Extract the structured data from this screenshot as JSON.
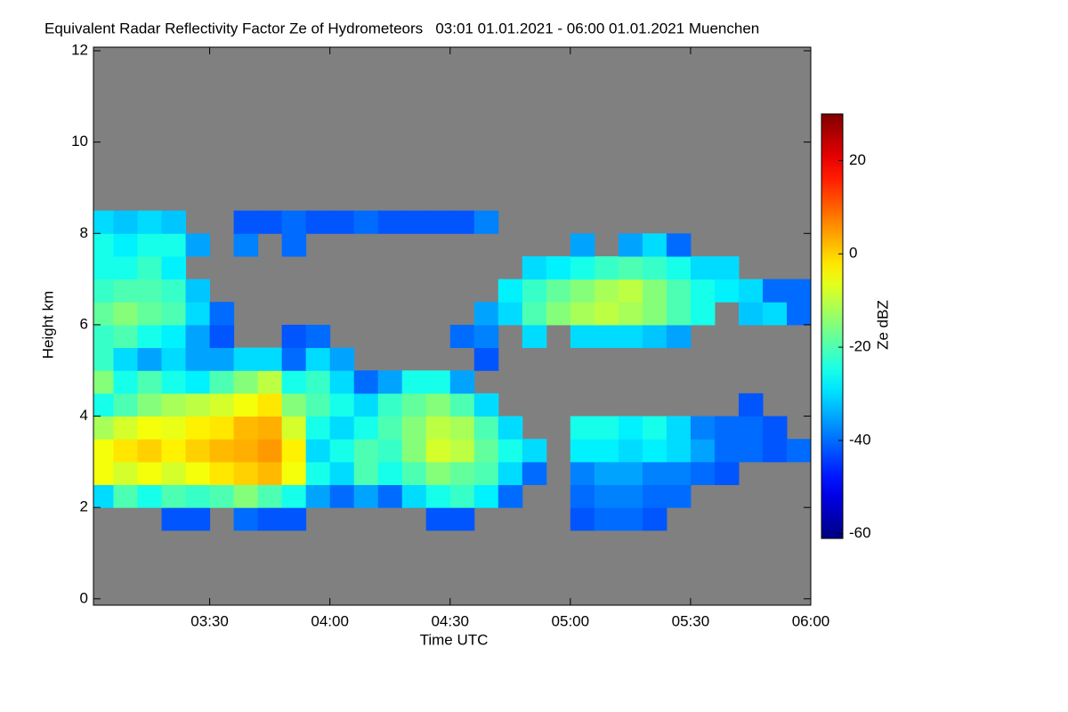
{
  "chart_data": {
    "type": "heatmap",
    "title": "Equivalent Radar Reflectivity Factor Ze of Hydrometeors   03:01 01.01.2021 - 06:00 01.01.2021 Muenchen",
    "xlabel": "Time UTC",
    "ylabel": "Height km",
    "colorbar_label": "Ze dBZ",
    "colormap": "jet",
    "background": "#808080",
    "xlim": [
      181,
      360
    ],
    "ylim": [
      -0.14,
      12
    ],
    "clim": [
      -61,
      30
    ],
    "xticks": [
      {
        "value": 210,
        "label": "03:30"
      },
      {
        "value": 240,
        "label": "04:00"
      },
      {
        "value": 270,
        "label": "04:30"
      },
      {
        "value": 300,
        "label": "05:00"
      },
      {
        "value": 330,
        "label": "05:30"
      },
      {
        "value": 360,
        "label": "06:00"
      }
    ],
    "yticks": [
      0,
      2,
      4,
      6,
      8,
      10,
      12
    ],
    "cticks": [
      -60,
      -40,
      -20,
      0,
      20
    ],
    "x": [
      180,
      186,
      192,
      198,
      204,
      210,
      216,
      222,
      228,
      234,
      240,
      246,
      252,
      258,
      264,
      270,
      276,
      282,
      288,
      294,
      300,
      306,
      312,
      318,
      324,
      330,
      336,
      342,
      348,
      354
    ],
    "y": [
      0,
      0.5,
      1,
      1.5,
      2,
      2.5,
      3,
      3.5,
      4,
      4.5,
      5,
      5.5,
      6,
      6.5,
      7,
      7.5,
      8,
      8.5
    ],
    "z": [
      [
        null,
        null,
        null,
        null,
        null,
        null,
        null,
        null,
        null,
        null,
        null,
        null,
        null,
        null,
        null,
        null,
        null,
        null,
        null,
        null,
        null,
        null,
        null,
        null,
        null,
        null,
        null,
        null,
        null,
        null
      ],
      [
        null,
        null,
        null,
        null,
        null,
        null,
        null,
        null,
        null,
        null,
        null,
        null,
        null,
        null,
        null,
        null,
        null,
        null,
        null,
        null,
        null,
        null,
        null,
        null,
        null,
        null,
        null,
        null,
        null,
        null
      ],
      [
        null,
        null,
        null,
        null,
        null,
        null,
        null,
        null,
        null,
        null,
        null,
        null,
        null,
        null,
        null,
        null,
        null,
        null,
        null,
        null,
        null,
        null,
        null,
        null,
        null,
        null,
        null,
        null,
        null,
        null
      ],
      [
        null,
        null,
        null,
        -42,
        -42,
        null,
        -40,
        -42,
        -42,
        null,
        null,
        null,
        null,
        null,
        -42,
        -42,
        null,
        null,
        null,
        null,
        -42,
        -40,
        -40,
        -42,
        null,
        null,
        null,
        null,
        null,
        null
      ],
      [
        -30,
        -20,
        -25,
        -20,
        -22,
        -20,
        -15,
        -20,
        -25,
        -35,
        -40,
        -35,
        -40,
        -30,
        -25,
        -22,
        -28,
        -40,
        null,
        null,
        -40,
        -38,
        -38,
        -40,
        -40,
        null,
        null,
        null,
        null,
        null
      ],
      [
        -5,
        -8,
        -5,
        -8,
        -5,
        -2,
        0,
        2,
        -5,
        -25,
        -30,
        -20,
        -25,
        -20,
        -15,
        -18,
        -20,
        -30,
        -40,
        null,
        -38,
        -35,
        -35,
        -38,
        -38,
        -40,
        -42,
        null,
        null,
        null
      ],
      [
        -5,
        -2,
        0,
        -3,
        0,
        2,
        3,
        5,
        -3,
        -30,
        -25,
        -20,
        -22,
        -15,
        -8,
        -10,
        -18,
        -25,
        -30,
        null,
        -28,
        -28,
        -30,
        -28,
        -30,
        -35,
        -40,
        -40,
        -42,
        -40
      ],
      [
        -12,
        -8,
        -5,
        -6,
        -3,
        -2,
        2,
        3,
        -8,
        -25,
        -30,
        -25,
        -20,
        -15,
        -10,
        -12,
        -20,
        -30,
        null,
        null,
        -25,
        -25,
        -28,
        -25,
        -30,
        -38,
        -40,
        -40,
        -42,
        null
      ],
      [
        -25,
        -20,
        -15,
        -12,
        -10,
        -8,
        -5,
        -2,
        -15,
        -20,
        -25,
        -30,
        -22,
        -18,
        -15,
        -20,
        -30,
        null,
        null,
        null,
        null,
        null,
        null,
        null,
        null,
        null,
        null,
        -42,
        null,
        null
      ],
      [
        -15,
        -25,
        -20,
        -25,
        -28,
        -20,
        -15,
        -10,
        -25,
        -22,
        -30,
        -40,
        -35,
        -25,
        -25,
        -35,
        null,
        null,
        null,
        null,
        null,
        null,
        null,
        null,
        null,
        null,
        null,
        null,
        null,
        null
      ],
      [
        -22,
        -30,
        -35,
        -30,
        -35,
        -35,
        -30,
        -30,
        -40,
        -30,
        -35,
        null,
        null,
        null,
        null,
        null,
        -42,
        null,
        null,
        null,
        null,
        null,
        null,
        null,
        null,
        null,
        null,
        null,
        null,
        null
      ],
      [
        -22,
        -20,
        -25,
        -28,
        -35,
        -42,
        null,
        null,
        -42,
        -40,
        null,
        null,
        null,
        null,
        null,
        -40,
        -38,
        null,
        -30,
        null,
        -30,
        -30,
        -30,
        -32,
        -35,
        null,
        null,
        null,
        null,
        null
      ],
      [
        -18,
        -15,
        -18,
        -20,
        -30,
        -40,
        null,
        null,
        null,
        null,
        null,
        null,
        null,
        null,
        null,
        null,
        -35,
        -30,
        -20,
        -15,
        -12,
        -10,
        -12,
        -15,
        -20,
        -25,
        null,
        -32,
        -30,
        -40
      ],
      [
        -22,
        -20,
        -20,
        -22,
        -32,
        null,
        null,
        null,
        null,
        null,
        null,
        null,
        null,
        null,
        null,
        null,
        null,
        -28,
        -22,
        -18,
        -15,
        -12,
        -10,
        -15,
        -20,
        -25,
        -28,
        -30,
        -40,
        -40
      ],
      [
        -25,
        -25,
        -22,
        -28,
        null,
        null,
        null,
        null,
        null,
        null,
        null,
        null,
        null,
        null,
        null,
        null,
        null,
        null,
        -30,
        -28,
        -25,
        -22,
        -20,
        -22,
        -25,
        -30,
        -30,
        null,
        null,
        null
      ],
      [
        -25,
        -28,
        -25,
        -25,
        -35,
        null,
        -38,
        null,
        -40,
        null,
        null,
        null,
        null,
        null,
        null,
        null,
        null,
        null,
        null,
        null,
        -35,
        null,
        -35,
        -30,
        -40,
        null,
        null,
        null,
        null,
        null
      ],
      [
        -30,
        -32,
        -30,
        -32,
        null,
        null,
        -42,
        -42,
        -40,
        -42,
        -42,
        -40,
        -42,
        -42,
        -42,
        -42,
        -38,
        null,
        null,
        null,
        null,
        null,
        null,
        null,
        null,
        null,
        null,
        null,
        null,
        null
      ],
      [
        null,
        null,
        null,
        null,
        null,
        null,
        null,
        null,
        null,
        null,
        null,
        null,
        null,
        null,
        null,
        null,
        null,
        null,
        null,
        null,
        null,
        null,
        null,
        null,
        null,
        null,
        null,
        null,
        null,
        null
      ]
    ]
  }
}
